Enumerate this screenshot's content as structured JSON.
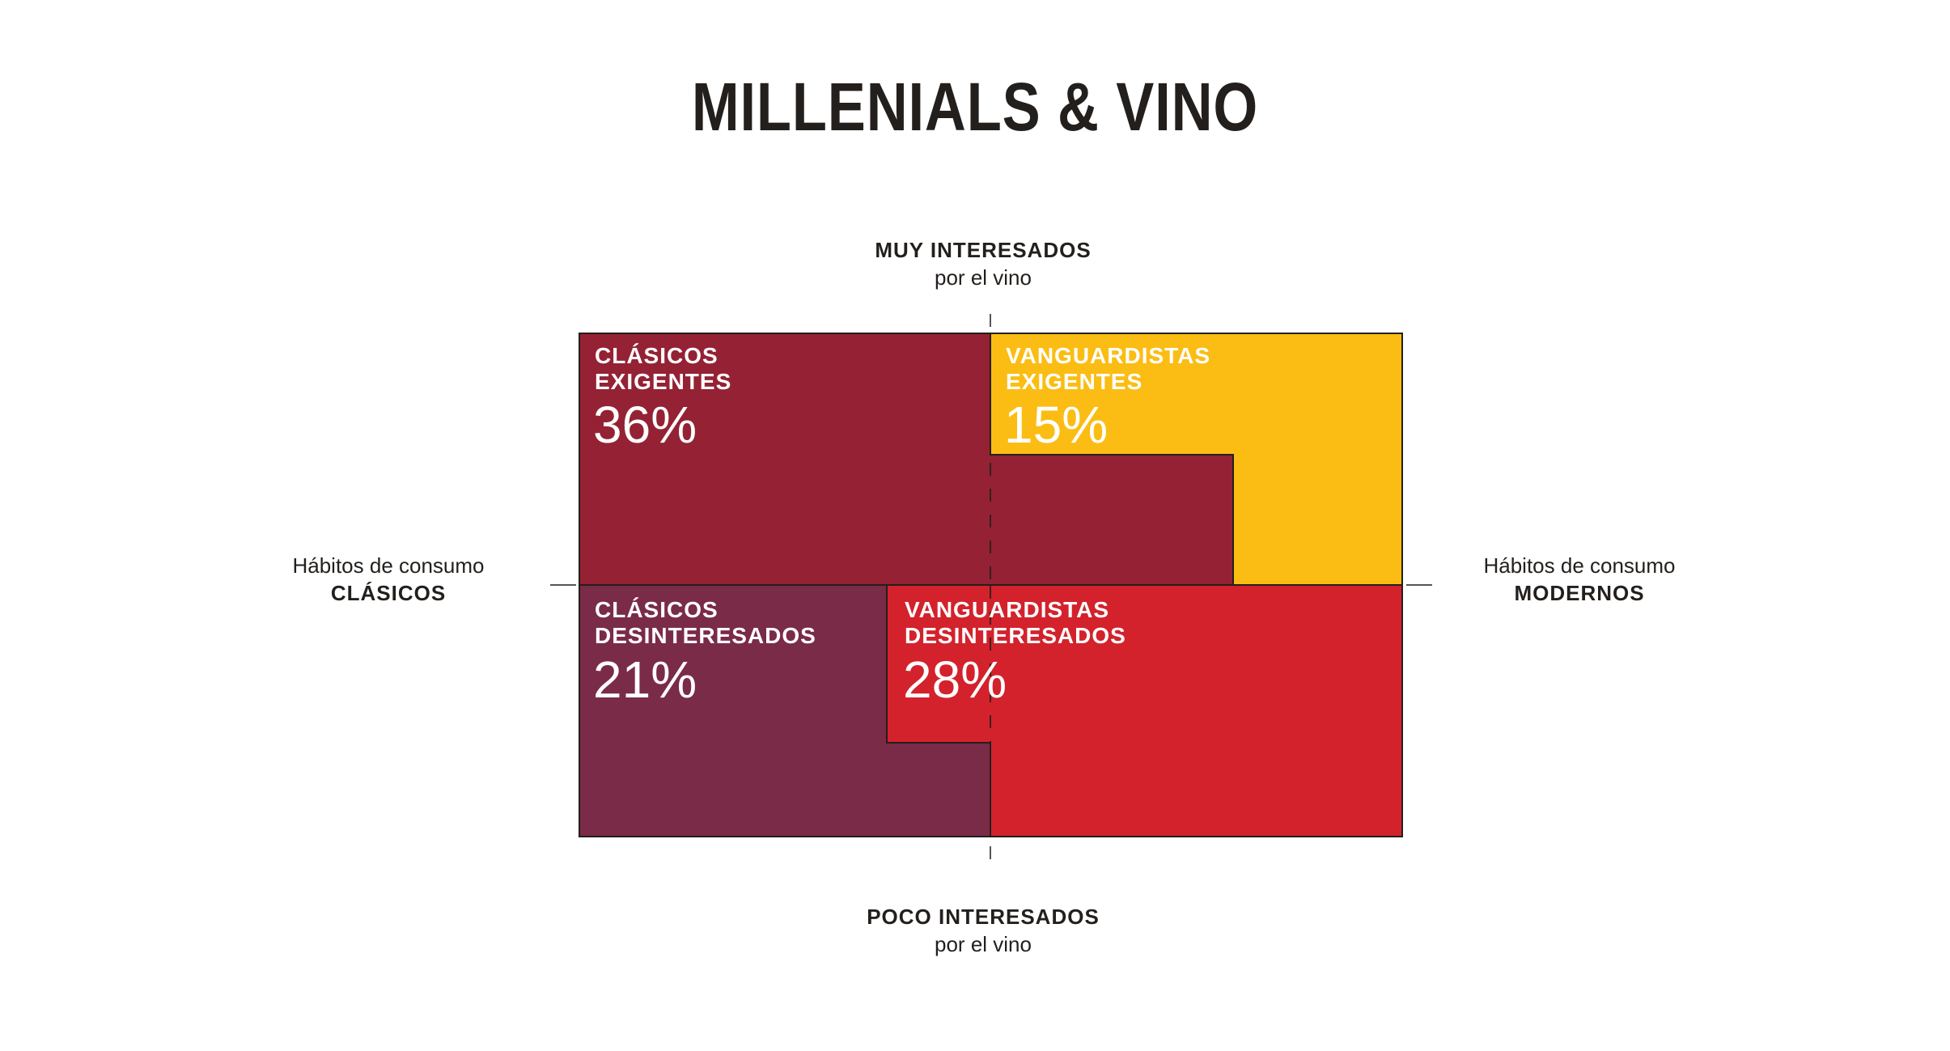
{
  "title": "MILLENIALS & VINO",
  "axes": {
    "top": {
      "strong": "MUY INTERESADOS",
      "light": "por el vino"
    },
    "bottom": {
      "strong": "POCO INTERESADOS",
      "light": "por el vino"
    },
    "left": {
      "light": "Hábitos de consumo",
      "strong": "CLÁSICOS"
    },
    "right": {
      "light": "Hábitos de consumo",
      "strong": "MODERNOS"
    }
  },
  "chart_data": {
    "type": "area",
    "title": "MILLENIALS & VINO",
    "segments": [
      {
        "line1": "CLÁSICOS",
        "line2": "EXIGENTES",
        "value": 36,
        "display": "36%",
        "color": "#942234"
      },
      {
        "line1": "VANGUARDISTAS",
        "line2": "EXIGENTES",
        "value": 15,
        "display": "15%",
        "color": "#fbbd14"
      },
      {
        "line1": "CLÁSICOS",
        "line2": "DESINTERESADOS",
        "value": 21,
        "display": "21%",
        "color": "#7a2b47"
      },
      {
        "line1": "VANGUARDISTAS",
        "line2": "DESINTERESADOS",
        "value": 28,
        "display": "28%",
        "color": "#d3222c"
      }
    ]
  }
}
